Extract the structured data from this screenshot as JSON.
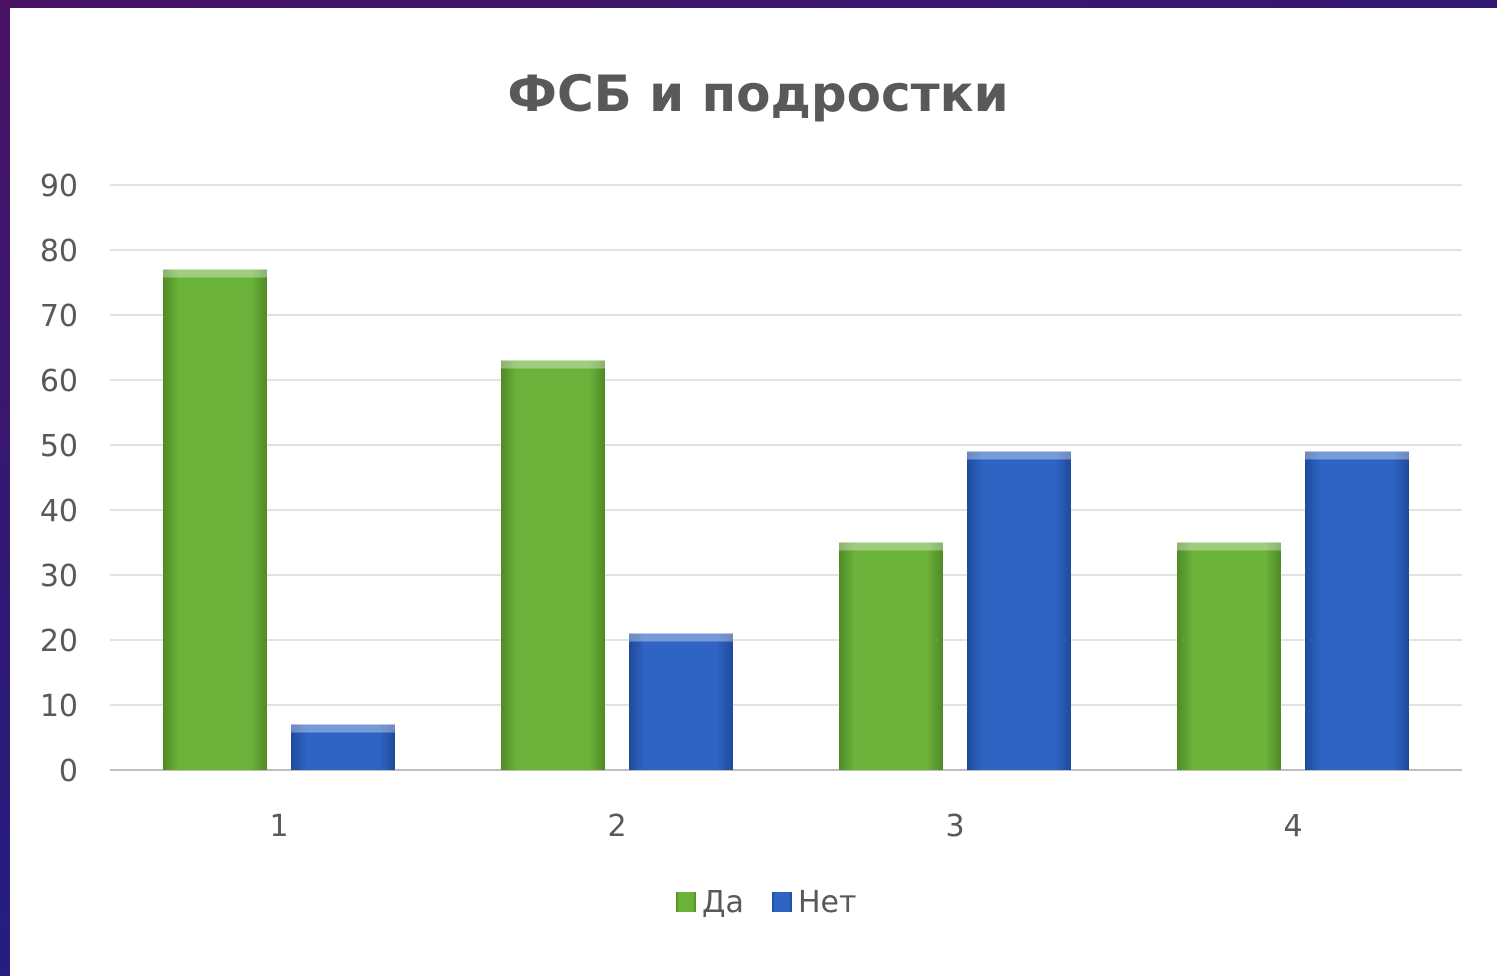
{
  "chart_data": {
    "type": "bar",
    "title": "ФСБ и подростки",
    "xlabel": "",
    "ylabel": "",
    "categories": [
      "1",
      "2",
      "3",
      "4"
    ],
    "series": [
      {
        "name": "Да",
        "values": [
          77,
          63,
          35,
          35
        ],
        "color": "#6bb23a"
      },
      {
        "name": "Нет",
        "values": [
          7,
          21,
          49,
          49
        ],
        "color": "#2f64c4"
      }
    ],
    "ylim": [
      0,
      90
    ],
    "yticks": [
      "0",
      "10",
      "20",
      "30",
      "40",
      "50",
      "60",
      "70",
      "80",
      "90"
    ],
    "grid": true,
    "legend": "bottom"
  }
}
